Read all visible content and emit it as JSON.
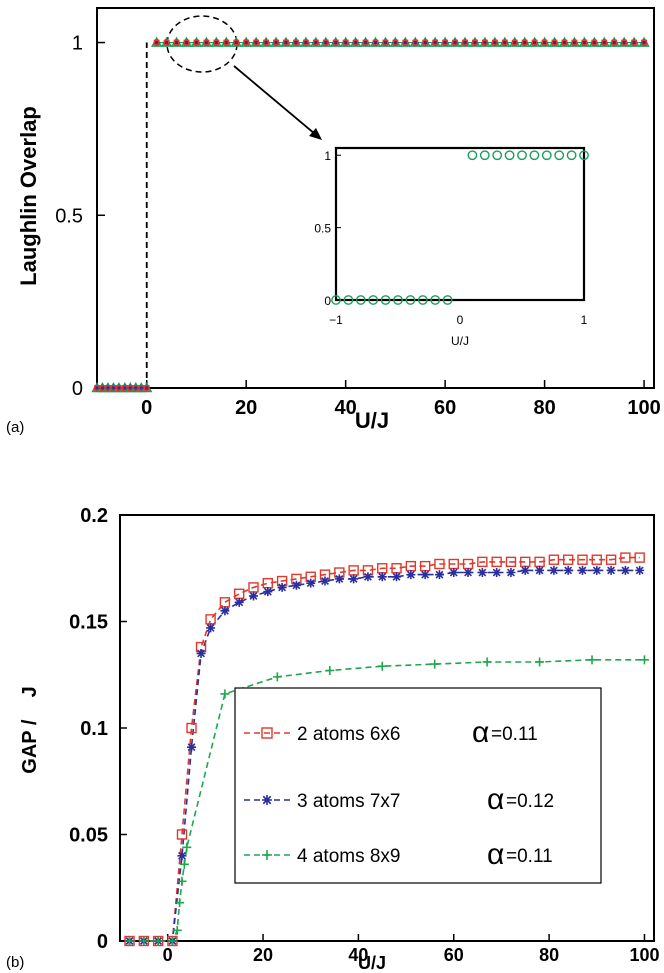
{
  "chart_data": [
    {
      "panel": "(a)",
      "type": "scatter",
      "xlabel": "U/J",
      "ylabel": "Laughlin Overlap",
      "xlim": [
        -10,
        102
      ],
      "ylim": [
        0,
        1.1
      ],
      "x_ticks": [
        "0",
        "20",
        "40",
        "60",
        "80",
        "100"
      ],
      "y_ticks": [
        "0",
        "0.5",
        "1"
      ],
      "colors": {
        "green": "#1a9e5c",
        "red": "#e0392b",
        "blue": "#2b2f9e"
      },
      "series": [
        {
          "x": [
            -10,
            -8.9,
            -7.8,
            -6.7,
            -5.6,
            -4.4,
            -3.3,
            -2.2,
            -1.1,
            0,
            2,
            4,
            6,
            8,
            10,
            12,
            14,
            16,
            18,
            20,
            22,
            24,
            26,
            28,
            30,
            32,
            34,
            36,
            38,
            40,
            42,
            44,
            46,
            48,
            50,
            52,
            54,
            56,
            58,
            60,
            62,
            64,
            66,
            68,
            70,
            72,
            74,
            76,
            78,
            80,
            82,
            84,
            86,
            88,
            90,
            92,
            94,
            96,
            98,
            100
          ],
          "y": [
            0,
            0,
            0,
            0,
            0,
            0,
            0,
            0,
            0,
            0,
            1,
            1,
            1,
            1,
            1,
            1,
            1,
            1,
            1,
            1,
            1,
            1,
            1,
            1,
            1,
            1,
            1,
            1,
            1,
            1,
            1,
            1,
            1,
            1,
            1,
            1,
            1,
            1,
            1,
            1,
            1,
            1,
            1,
            1,
            1,
            1,
            1,
            1,
            1,
            1,
            1,
            1,
            1,
            1,
            1,
            1,
            1,
            1,
            1,
            1
          ]
        }
      ],
      "inset": {
        "xlabel": "U/J",
        "xlim": [
          -1,
          1
        ],
        "ylim": [
          0,
          1.05
        ],
        "x_ticks": [
          "−1",
          "0",
          "1"
        ],
        "y_ticks": [
          "0",
          "0.5",
          "1"
        ],
        "x": [
          -1,
          -0.9,
          -0.8,
          -0.7,
          -0.6,
          -0.5,
          -0.4,
          -0.3,
          -0.2,
          -0.1,
          0.1,
          0.2,
          0.3,
          0.4,
          0.5,
          0.6,
          0.7,
          0.8,
          0.9,
          1
        ],
        "y": [
          0,
          0,
          0,
          0,
          0,
          0,
          0,
          0,
          0,
          0,
          1,
          1,
          1,
          1,
          1,
          1,
          1,
          1,
          1,
          1
        ]
      }
    },
    {
      "panel": "(b)",
      "type": "line",
      "xlabel": "U/J",
      "ylabel": "GAP /    J",
      "xlim": [
        -10,
        102
      ],
      "ylim": [
        0,
        0.2
      ],
      "x_ticks": [
        "0",
        "20",
        "40",
        "60",
        "80",
        "100"
      ],
      "y_ticks": [
        "0",
        "0.05",
        "0.1",
        "0.15",
        "0.2"
      ],
      "legend_position": "center-right",
      "series": [
        {
          "name": "2 atoms 6x6",
          "alpha_label": "=0.11",
          "color": "#e0392b",
          "marker": "square",
          "x": [
            -8,
            -5,
            -2,
            1,
            3,
            5,
            7,
            9,
            12,
            15,
            18,
            21,
            24,
            27,
            30,
            33,
            36,
            39,
            42,
            45,
            48,
            51,
            54,
            57,
            60,
            63,
            66,
            69,
            72,
            75,
            78,
            81,
            84,
            87,
            90,
            93,
            96,
            99
          ],
          "y": [
            0,
            0,
            0,
            0,
            0.05,
            0.1,
            0.138,
            0.151,
            0.159,
            0.163,
            0.166,
            0.168,
            0.169,
            0.17,
            0.171,
            0.172,
            0.173,
            0.174,
            0.174,
            0.175,
            0.175,
            0.176,
            0.176,
            0.177,
            0.177,
            0.177,
            0.178,
            0.178,
            0.178,
            0.178,
            0.178,
            0.179,
            0.179,
            0.179,
            0.179,
            0.179,
            0.18,
            0.18
          ]
        },
        {
          "name": "3 atoms 7x7",
          "alpha_label": "=0.12",
          "color": "#2b2f9e",
          "marker": "star",
          "x": [
            -8,
            -5,
            -2,
            1,
            3,
            5,
            7,
            9,
            12,
            15,
            18,
            21,
            24,
            27,
            30,
            33,
            36,
            39,
            42,
            45,
            48,
            51,
            54,
            57,
            60,
            63,
            66,
            69,
            72,
            75,
            78,
            81,
            84,
            87,
            90,
            93,
            96,
            99
          ],
          "y": [
            0,
            0,
            0,
            0,
            0.04,
            0.091,
            0.135,
            0.147,
            0.155,
            0.159,
            0.162,
            0.164,
            0.166,
            0.167,
            0.168,
            0.169,
            0.17,
            0.17,
            0.171,
            0.171,
            0.171,
            0.172,
            0.172,
            0.172,
            0.173,
            0.173,
            0.173,
            0.173,
            0.173,
            0.174,
            0.174,
            0.174,
            0.174,
            0.174,
            0.174,
            0.174,
            0.174,
            0.174
          ]
        },
        {
          "name": "4 atoms  8x9",
          "alpha_label": "=0.11",
          "color": "#1fa64e",
          "marker": "plus",
          "x": [
            -8,
            -5,
            -2,
            1,
            2,
            2.5,
            3,
            3.5,
            4,
            12,
            23,
            34,
            45,
            56,
            67,
            78,
            89,
            100
          ],
          "y": [
            0,
            0,
            0,
            0,
            0.005,
            0.018,
            0.028,
            0.036,
            0.044,
            0.116,
            0.124,
            0.127,
            0.129,
            0.13,
            0.131,
            0.131,
            0.132,
            0.132
          ]
        }
      ]
    }
  ]
}
